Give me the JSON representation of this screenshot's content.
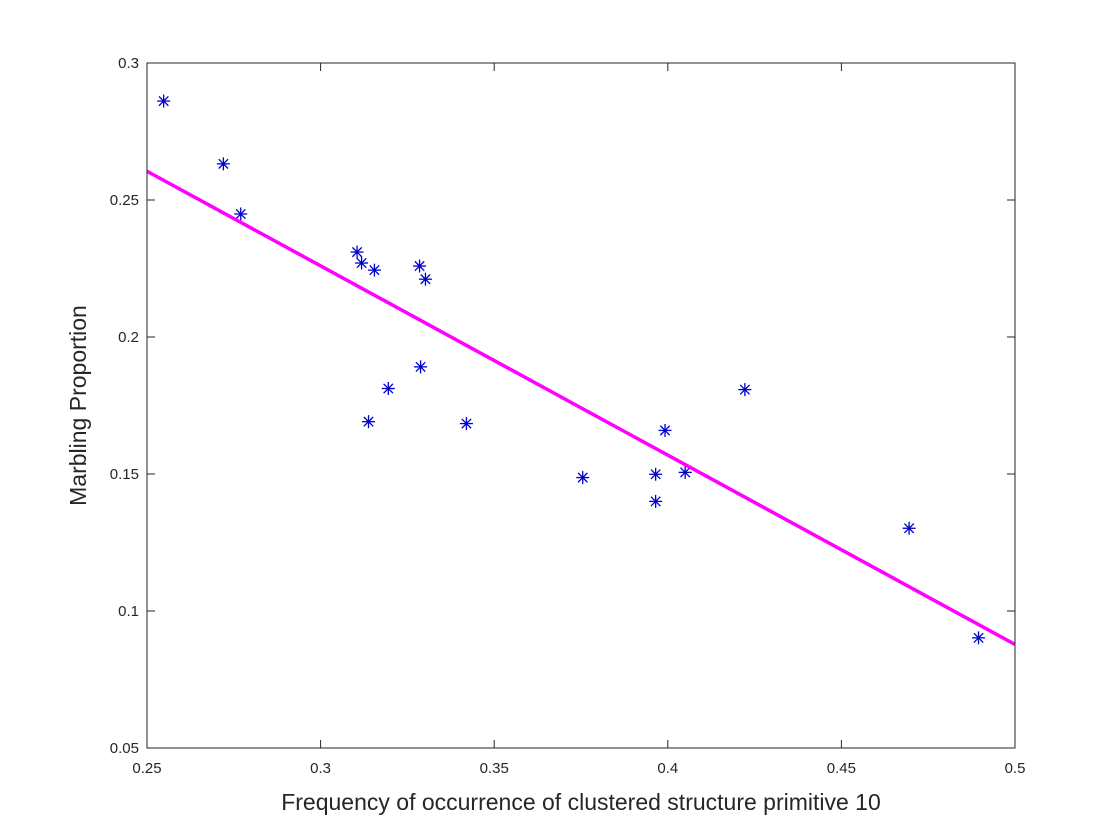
{
  "chart_data": {
    "type": "scatter",
    "xlabel": "Frequency of occurrence of clustered structure primitive 10",
    "ylabel": "Marbling Proportion",
    "xlim": [
      0.25,
      0.5
    ],
    "ylim": [
      0.05,
      0.3
    ],
    "xticks": [
      "0.25",
      "0.3",
      "0.35",
      "0.4",
      "0.45",
      "0.5"
    ],
    "yticks": [
      "0.05",
      "0.1",
      "0.15",
      "0.2",
      "0.25",
      "0.3"
    ],
    "grid": false,
    "legend": "none",
    "series": [
      {
        "kind": "scatter",
        "marker": "asterisk",
        "color": "#0000cc",
        "points": [
          {
            "x": 0.2548,
            "y": 0.2861
          },
          {
            "x": 0.272,
            "y": 0.2632
          },
          {
            "x": 0.277,
            "y": 0.2449
          },
          {
            "x": 0.3105,
            "y": 0.231
          },
          {
            "x": 0.3118,
            "y": 0.227
          },
          {
            "x": 0.3155,
            "y": 0.2244
          },
          {
            "x": 0.3285,
            "y": 0.2259
          },
          {
            "x": 0.3302,
            "y": 0.2211
          },
          {
            "x": 0.3195,
            "y": 0.1812
          },
          {
            "x": 0.3288,
            "y": 0.1891
          },
          {
            "x": 0.3138,
            "y": 0.1691
          },
          {
            "x": 0.342,
            "y": 0.1684
          },
          {
            "x": 0.3755,
            "y": 0.1487
          },
          {
            "x": 0.3965,
            "y": 0.1499
          },
          {
            "x": 0.3965,
            "y": 0.14
          },
          {
            "x": 0.3992,
            "y": 0.1659
          },
          {
            "x": 0.405,
            "y": 0.1506
          },
          {
            "x": 0.4222,
            "y": 0.1808
          },
          {
            "x": 0.4695,
            "y": 0.1302
          },
          {
            "x": 0.4895,
            "y": 0.0902
          }
        ]
      },
      {
        "kind": "line",
        "color": "#ff00ff",
        "points": [
          {
            "x": 0.25,
            "y": 0.2605
          },
          {
            "x": 0.5,
            "y": 0.0878
          }
        ]
      }
    ]
  }
}
